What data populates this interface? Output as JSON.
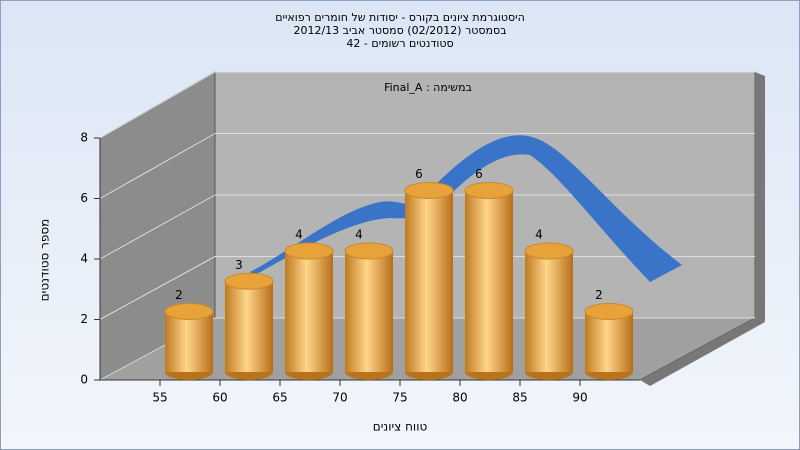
{
  "chart_data": {
    "type": "histogram",
    "title": [
      "היסטוגרמת ציונים בקורס - יסודות של חומרים רפואיים",
      "בסמסטר  (02/2012)  סמסטר אביב 2012/13",
      "סטודנטים רשומים - 42"
    ],
    "annotation": "Final_A : במשימה",
    "xlabel": "טווח ציונים",
    "ylabel": "מספר סטודנטים",
    "bins": [
      55,
      60,
      65,
      70,
      75,
      80,
      85,
      90,
      95
    ],
    "values": [
      2,
      3,
      4,
      4,
      6,
      6,
      4,
      2
    ],
    "color": "#e8a23a",
    "xlim": [
      50,
      95
    ],
    "xticks": [
      55,
      60,
      65,
      70,
      75,
      80,
      85,
      90
    ],
    "ylim": [
      0,
      8
    ],
    "yticks": [
      0,
      2,
      4,
      6,
      8
    ],
    "grid": true
  }
}
